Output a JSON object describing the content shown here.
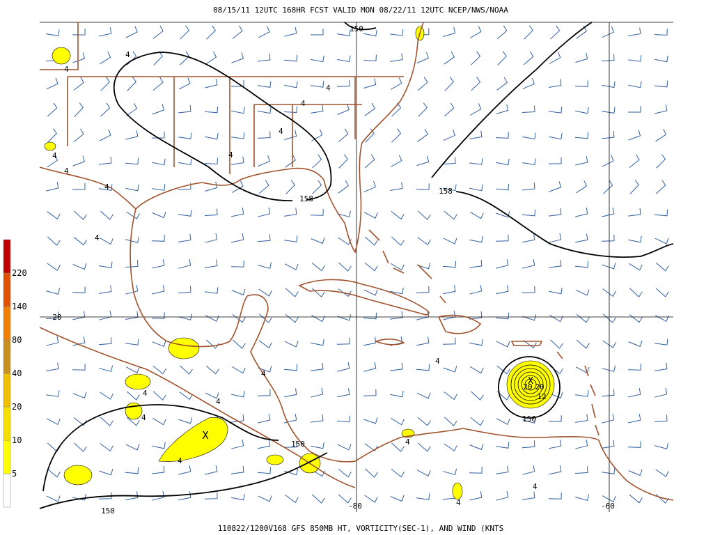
{
  "header": {
    "title": "08/15/11 12UTC  168HR  FCST VALID MON 08/22/11 12UTC  NCEP/NWS/NOAA"
  },
  "footer": {
    "caption": "110822/1200V168 GFS 850MB HT, VORTICITY(SEC-1), AND WIND (KNTS"
  },
  "colorbar": {
    "labels": [
      "5",
      "10",
      "20",
      "40",
      "80",
      "140",
      "220"
    ],
    "colors": [
      "#ffffff",
      "#ffff00",
      "#f5e000",
      "#f0c000",
      "#c89020",
      "#f08000",
      "#e05000",
      "#c00000"
    ]
  },
  "grid_labels": [
    "20",
    "-80",
    "-60"
  ],
  "contour_labels": [
    "150",
    "158",
    "158",
    "150",
    "150",
    "150",
    "20",
    "20",
    "12",
    "4",
    "4",
    "4",
    "4",
    "4",
    "4",
    "4",
    "4",
    "4",
    "4",
    "4",
    "4",
    "4",
    "4",
    "4",
    "4",
    "4",
    "4",
    "4"
  ]
}
